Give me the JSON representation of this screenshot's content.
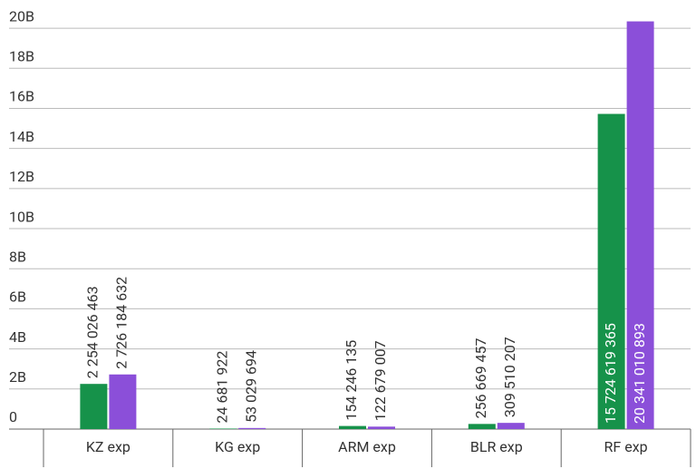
{
  "chart_data": {
    "type": "bar",
    "categories": [
      "KZ exp",
      "KG exp",
      "ARM exp",
      "BLR exp",
      "RF exp"
    ],
    "series": [
      {
        "color": "#16924a",
        "values": [
          2254026463,
          24681922,
          154246135,
          256669457,
          15724619365
        ],
        "value_labels": [
          "2 254 026 463",
          "24 681 922",
          "154 246 135",
          "256 669 457",
          "15 724 619 365"
        ]
      },
      {
        "color": "#8b4fd9",
        "values": [
          2726184632,
          53029694,
          122679007,
          309510207,
          20341010893
        ],
        "value_labels": [
          "2 726 184 632",
          "53 029 694",
          "122 679 007",
          "309 510 207",
          "20 341 010 893"
        ]
      }
    ],
    "ylim": [
      0,
      21000000000
    ],
    "yticks": [
      {
        "value": 0,
        "label": "0"
      },
      {
        "value": 2000000000,
        "label": "2B"
      },
      {
        "value": 4000000000,
        "label": "4B"
      },
      {
        "value": 6000000000,
        "label": "6B"
      },
      {
        "value": 8000000000,
        "label": "8B"
      },
      {
        "value": 10000000000,
        "label": "10B"
      },
      {
        "value": 12000000000,
        "label": "12B"
      },
      {
        "value": 14000000000,
        "label": "14B"
      },
      {
        "value": 16000000000,
        "label": "16B"
      },
      {
        "value": 18000000000,
        "label": "18B"
      },
      {
        "value": 20000000000,
        "label": "20B"
      }
    ],
    "grid": true
  }
}
